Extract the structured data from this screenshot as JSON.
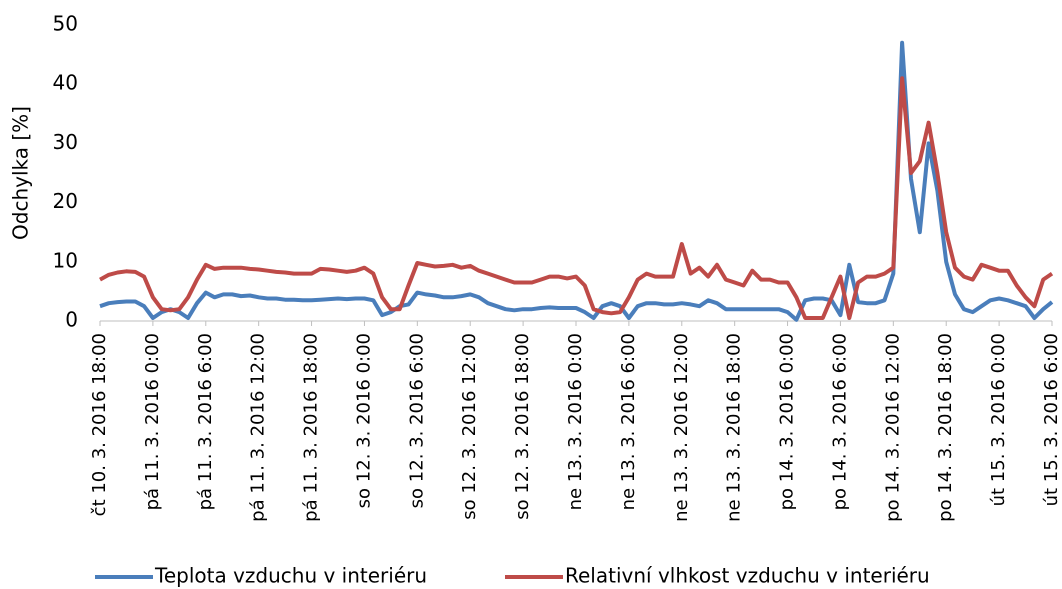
{
  "chart_data": {
    "type": "line",
    "y_label": "Odchylka [%]",
    "categories": [
      "čt 10. 3. 2016 18:00",
      null,
      null,
      null,
      null,
      null,
      "pá 11. 3. 2016 0:00",
      null,
      null,
      null,
      null,
      null,
      "pá 11. 3. 2016 6:00",
      null,
      null,
      null,
      null,
      null,
      "pá 11. 3. 2016 12:00",
      null,
      null,
      null,
      null,
      null,
      "pá 11. 3. 2016 18:00",
      null,
      null,
      null,
      null,
      null,
      "so 12. 3. 2016 0:00",
      null,
      null,
      null,
      null,
      null,
      "so 12. 3. 2016 6:00",
      null,
      null,
      null,
      null,
      null,
      "so 12. 3. 2016 12:00",
      null,
      null,
      null,
      null,
      null,
      "so 12. 3. 2016 18:00",
      null,
      null,
      null,
      null,
      null,
      "ne 13. 3. 2016 0:00",
      null,
      null,
      null,
      null,
      null,
      "ne 13. 3. 2016 6:00",
      null,
      null,
      null,
      null,
      null,
      "ne 13. 3. 2016 12:00",
      null,
      null,
      null,
      null,
      null,
      "ne 13. 3. 2016 18:00",
      null,
      null,
      null,
      null,
      null,
      "po 14. 3. 2016 0:00",
      null,
      null,
      null,
      null,
      null,
      "po 14. 3. 2016 6:00",
      null,
      null,
      null,
      null,
      null,
      "po 14. 3. 2016 12:00",
      null,
      null,
      null,
      null,
      null,
      "po 14. 3. 2016 18:00",
      null,
      null,
      null,
      null,
      null,
      "út 15. 3. 2016 0:00",
      null,
      null,
      null,
      null,
      null,
      "út 15. 3. 2016 6:00"
    ],
    "series": [
      {
        "name": "Teplota vzduchu v interiéru",
        "color": "#4a7ebb",
        "values": [
          2.5,
          3,
          3.2,
          3.3,
          3.3,
          2.5,
          0.5,
          1.5,
          2,
          1.5,
          0.5,
          3,
          4.8,
          4,
          4.5,
          4.5,
          4.2,
          4.3,
          4,
          3.8,
          3.8,
          3.6,
          3.6,
          3.5,
          3.5,
          3.6,
          3.7,
          3.8,
          3.7,
          3.8,
          3.8,
          3.5,
          1,
          1.5,
          2.5,
          2.8,
          4.8,
          4.5,
          4.3,
          4,
          4,
          4.2,
          4.5,
          4,
          3,
          2.5,
          2,
          1.8,
          2,
          2,
          2.2,
          2.3,
          2.2,
          2.2,
          2.2,
          1.5,
          0.5,
          2.5,
          3,
          2.5,
          0.5,
          2.5,
          3,
          3,
          2.8,
          2.8,
          3,
          2.8,
          2.5,
          3.5,
          3,
          2,
          2,
          2,
          2,
          2,
          2,
          2,
          1.5,
          0.2,
          3.5,
          3.8,
          3.8,
          3.5,
          1,
          9.5,
          3.2,
          3,
          3,
          3.5,
          8,
          47,
          24,
          15,
          30,
          22,
          10,
          4.5,
          2,
          1.5,
          2.5,
          3.5,
          3.8,
          3.5,
          3,
          2.5,
          0.5,
          2,
          3.2
        ]
      },
      {
        "name": "Relativní vlhkost vzduchu v interiéru",
        "color": "#be4b48",
        "values": [
          7,
          7.8,
          8.2,
          8.4,
          8.3,
          7.5,
          4,
          2,
          1.8,
          2,
          4,
          7,
          9.5,
          8.8,
          9,
          9,
          9,
          8.8,
          8.7,
          8.5,
          8.3,
          8.2,
          8,
          8,
          8,
          8.8,
          8.7,
          8.5,
          8.3,
          8.5,
          9,
          8,
          4,
          2,
          2,
          6,
          9.8,
          9.5,
          9.2,
          9.3,
          9.5,
          9,
          9.3,
          8.5,
          8,
          7.5,
          7,
          6.5,
          6.5,
          6.5,
          7,
          7.5,
          7.5,
          7.2,
          7.5,
          6,
          2,
          1.5,
          1.3,
          1.5,
          4,
          7,
          8,
          7.5,
          7.5,
          7.5,
          13,
          8,
          9,
          7.5,
          9.5,
          7,
          6.5,
          6,
          8.5,
          7,
          7,
          6.5,
          6.5,
          4,
          0.5,
          0.5,
          0.5,
          4,
          7.5,
          0.5,
          6.5,
          7.5,
          7.5,
          8,
          9,
          41,
          25,
          27,
          33.5,
          25,
          15,
          9,
          7.5,
          7,
          9.5,
          9,
          8.5,
          8.5,
          6,
          4,
          2.5,
          7,
          8
        ]
      }
    ],
    "ylim": [
      0,
      50
    ],
    "yticks": [
      0,
      10,
      20,
      30,
      40,
      50
    ],
    "grid": false,
    "legend": "bottom"
  }
}
